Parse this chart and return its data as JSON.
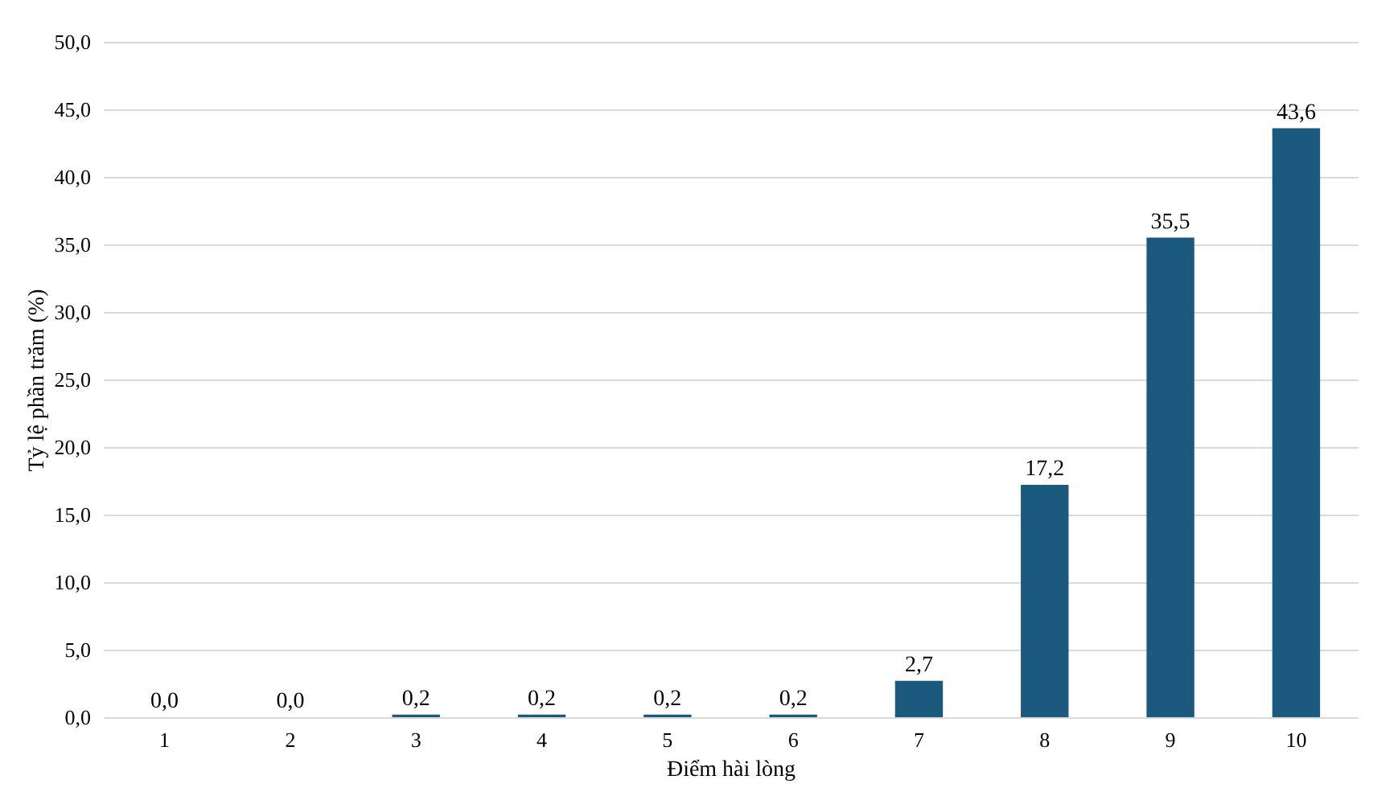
{
  "chart_data": {
    "type": "bar",
    "xlabel": "Điểm hài lòng",
    "ylabel": "Tỷ lệ phần trăm (%)",
    "categories": [
      "1",
      "2",
      "3",
      "4",
      "5",
      "6",
      "7",
      "8",
      "9",
      "10"
    ],
    "values": [
      0.0,
      0.0,
      0.2,
      0.2,
      0.2,
      0.2,
      2.7,
      17.2,
      35.5,
      43.6
    ],
    "value_labels": [
      "0,0",
      "0,0",
      "0,2",
      "0,2",
      "0,2",
      "0,2",
      "2,7",
      "17,2",
      "35,5",
      "43,6"
    ],
    "color": "#1b5a7e",
    "ylim": [
      0,
      50
    ],
    "yticks": [
      {
        "value": 0,
        "label": "0,0"
      },
      {
        "value": 5,
        "label": "5,0"
      },
      {
        "value": 10,
        "label": "10,0"
      },
      {
        "value": 15,
        "label": "15,0"
      },
      {
        "value": 20,
        "label": "20,0"
      },
      {
        "value": 25,
        "label": "25,0"
      },
      {
        "value": 30,
        "label": "30,0"
      },
      {
        "value": 35,
        "label": "35,0"
      },
      {
        "value": 40,
        "label": "40,0"
      },
      {
        "value": 45,
        "label": "45,0"
      },
      {
        "value": 50,
        "label": "50,0"
      }
    ],
    "grid": "y"
  }
}
